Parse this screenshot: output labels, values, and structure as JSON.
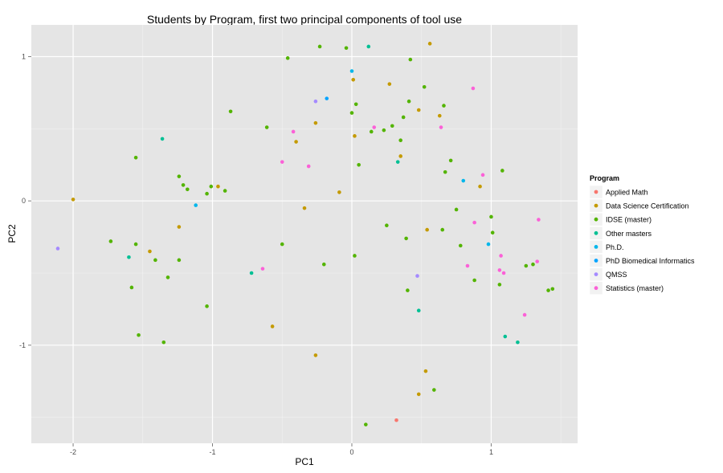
{
  "chart_data": {
    "type": "scatter",
    "title": "Students by Program, first two principal components of tool use",
    "xlabel": "PC1",
    "ylabel": "PC2",
    "xlim": [
      -2.3,
      1.62
    ],
    "ylim": [
      -1.68,
      1.22
    ],
    "x_ticks": [
      -2,
      -1,
      0,
      1
    ],
    "y_ticks": [
      1,
      0,
      -1
    ],
    "x_tick_labels": [
      "-2",
      "-1",
      "0",
      "1"
    ],
    "y_tick_labels": [
      "1",
      "0",
      "-1"
    ],
    "grid": true,
    "legend": {
      "title": "Program",
      "placement": "right"
    },
    "series": [
      {
        "name": "Applied Math",
        "color": "#F8766D",
        "points": [
          [
            0.32,
            -1.52
          ]
        ]
      },
      {
        "name": "Data Science Certification",
        "color": "#C49A00",
        "points": [
          [
            -2.0,
            0.01
          ],
          [
            -1.24,
            -0.18
          ],
          [
            -1.45,
            -0.35
          ],
          [
            -0.96,
            0.1
          ],
          [
            -0.57,
            -0.87
          ],
          [
            -0.34,
            -0.05
          ],
          [
            -0.26,
            0.54
          ],
          [
            -0.26,
            -1.07
          ],
          [
            -0.4,
            0.41
          ],
          [
            -0.09,
            0.06
          ],
          [
            0.01,
            0.84
          ],
          [
            0.02,
            0.45
          ],
          [
            0.27,
            0.81
          ],
          [
            0.35,
            0.31
          ],
          [
            0.48,
            0.63
          ],
          [
            0.48,
            -1.34
          ],
          [
            0.53,
            -1.18
          ],
          [
            0.54,
            -0.2
          ],
          [
            0.56,
            1.09
          ],
          [
            0.63,
            0.59
          ],
          [
            0.92,
            0.1
          ]
        ]
      },
      {
        "name": "IDSE (master)",
        "color": "#53B400",
        "points": [
          [
            -1.73,
            -0.28
          ],
          [
            -1.55,
            0.3
          ],
          [
            -1.55,
            -0.3
          ],
          [
            -1.53,
            -0.93
          ],
          [
            -1.58,
            -0.6
          ],
          [
            -1.41,
            -0.41
          ],
          [
            -1.35,
            -0.98
          ],
          [
            -1.32,
            -0.53
          ],
          [
            -1.24,
            0.17
          ],
          [
            -1.24,
            -0.41
          ],
          [
            -1.21,
            0.11
          ],
          [
            -1.18,
            0.08
          ],
          [
            -1.04,
            0.05
          ],
          [
            -1.04,
            -0.73
          ],
          [
            -1.01,
            0.1
          ],
          [
            -0.91,
            0.07
          ],
          [
            -0.87,
            0.62
          ],
          [
            -0.61,
            0.51
          ],
          [
            -0.5,
            -0.3
          ],
          [
            -0.46,
            0.99
          ],
          [
            -0.23,
            1.07
          ],
          [
            -0.2,
            -0.44
          ],
          [
            -0.04,
            1.06
          ],
          [
            0.0,
            0.61
          ],
          [
            0.02,
            -0.38
          ],
          [
            0.03,
            0.67
          ],
          [
            0.05,
            0.25
          ],
          [
            0.1,
            -1.55
          ],
          [
            0.14,
            0.48
          ],
          [
            0.23,
            0.49
          ],
          [
            0.25,
            -0.17
          ],
          [
            0.29,
            0.52
          ],
          [
            0.35,
            0.42
          ],
          [
            0.37,
            0.58
          ],
          [
            0.39,
            -0.26
          ],
          [
            0.4,
            -0.62
          ],
          [
            0.41,
            0.69
          ],
          [
            0.42,
            0.98
          ],
          [
            0.52,
            0.79
          ],
          [
            0.59,
            -1.31
          ],
          [
            0.65,
            -0.2
          ],
          [
            0.66,
            0.66
          ],
          [
            0.67,
            0.2
          ],
          [
            0.71,
            0.28
          ],
          [
            0.75,
            -0.06
          ],
          [
            0.78,
            -0.31
          ],
          [
            0.88,
            -0.55
          ],
          [
            1.0,
            -0.11
          ],
          [
            1.01,
            -0.22
          ],
          [
            1.06,
            -0.58
          ],
          [
            1.08,
            0.21
          ],
          [
            1.25,
            -0.45
          ],
          [
            1.3,
            -0.44
          ],
          [
            1.41,
            -0.62
          ],
          [
            1.44,
            -0.61
          ]
        ]
      },
      {
        "name": "Other masters",
        "color": "#00C094",
        "points": [
          [
            -1.6,
            -0.39
          ],
          [
            -1.36,
            0.43
          ],
          [
            -0.72,
            -0.5
          ],
          [
            0.12,
            1.07
          ],
          [
            0.33,
            0.27
          ],
          [
            0.48,
            -0.76
          ],
          [
            1.1,
            -0.94
          ],
          [
            1.19,
            -0.98
          ]
        ]
      },
      {
        "name": "Ph.D.",
        "color": "#00B6EB",
        "points": [
          [
            -1.12,
            -0.03
          ],
          [
            0.0,
            0.9
          ],
          [
            0.8,
            0.14
          ],
          [
            0.98,
            -0.3
          ]
        ]
      },
      {
        "name": "PhD Biomedical Informatics",
        "color": "#06A4FF",
        "points": [
          [
            -0.18,
            0.71
          ]
        ]
      },
      {
        "name": "QMSS",
        "color": "#A58AFF",
        "points": [
          [
            -2.11,
            -0.33
          ],
          [
            -0.26,
            0.69
          ],
          [
            0.47,
            -0.52
          ]
        ]
      },
      {
        "name": "Statistics (master)",
        "color": "#FB61D7",
        "points": [
          [
            -0.64,
            -0.47
          ],
          [
            -0.5,
            0.27
          ],
          [
            -0.42,
            0.48
          ],
          [
            -0.31,
            0.24
          ],
          [
            0.16,
            0.51
          ],
          [
            0.64,
            0.51
          ],
          [
            0.83,
            -0.45
          ],
          [
            0.87,
            0.78
          ],
          [
            0.88,
            -0.15
          ],
          [
            0.94,
            0.18
          ],
          [
            1.06,
            -0.48
          ],
          [
            1.07,
            -0.38
          ],
          [
            1.09,
            -0.5
          ],
          [
            1.24,
            -0.79
          ],
          [
            1.33,
            -0.42
          ],
          [
            1.34,
            -0.13
          ]
        ]
      }
    ]
  }
}
